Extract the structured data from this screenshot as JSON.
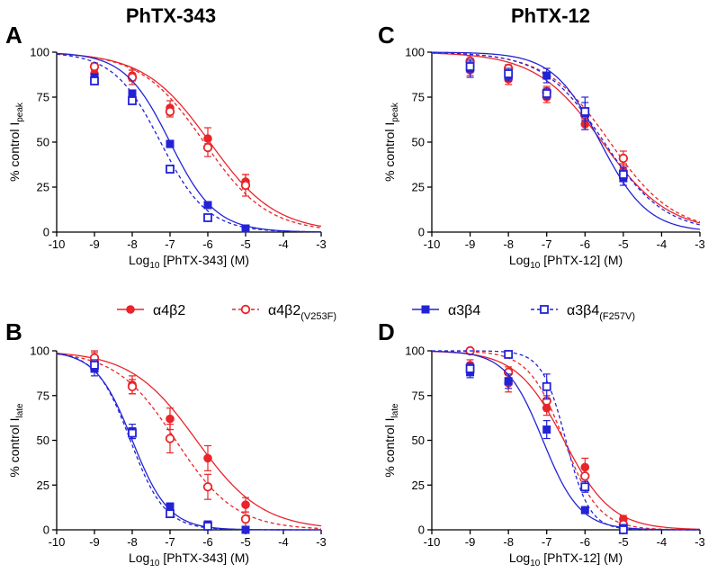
{
  "colors": {
    "red": "#e8252a",
    "blue": "#2323d6"
  },
  "column_titles": [
    "PhTX-343",
    "PhTX-12"
  ],
  "legend": [
    {
      "label": "α4β2",
      "sub": "",
      "color": "red",
      "marker": "filled-circle",
      "dashed": false
    },
    {
      "label": "α4β2",
      "sub": "(V253F)",
      "color": "red",
      "marker": "open-circle",
      "dashed": true
    },
    {
      "label": "α3β4",
      "sub": "",
      "color": "blue",
      "marker": "filled-square",
      "dashed": false
    },
    {
      "label": "α3β4",
      "sub": "(F257V)",
      "color": "blue",
      "marker": "open-square",
      "dashed": true
    }
  ],
  "chart_data": [
    {
      "panel": "A",
      "type": "scatter",
      "curve_fit": "sigmoidal",
      "xlabel": {
        "main": "Log",
        "sub": "10",
        "rest": " [PhTX-343] (M)"
      },
      "ylabel": {
        "main": "% control I",
        "sub": "peak"
      },
      "xlim": [
        -10,
        -3
      ],
      "ylim": [
        0,
        100
      ],
      "xticks": [
        "-10",
        "-9",
        "-8",
        "-7",
        "-6",
        "-5",
        "-4",
        "-3"
      ],
      "yticks": [
        "0",
        "25",
        "50",
        "75",
        "100"
      ],
      "series": [
        {
          "legend_index": 0,
          "x": [
            -9,
            -8,
            -7,
            -6,
            -5
          ],
          "y": [
            88,
            87,
            69,
            52,
            28
          ],
          "err": [
            3,
            3,
            4,
            6,
            4
          ],
          "ic50_log": -5.95,
          "hill": 0.5
        },
        {
          "legend_index": 1,
          "x": [
            -9,
            -8,
            -7,
            -6,
            -5
          ],
          "y": [
            92,
            86,
            67,
            47,
            26
          ],
          "err": [
            2,
            4,
            3,
            5,
            6
          ],
          "ic50_log": -6.1,
          "hill": 0.52
        },
        {
          "legend_index": 2,
          "x": [
            -9,
            -8,
            -7,
            -6,
            -5
          ],
          "y": [
            86,
            77,
            49,
            15,
            2
          ],
          "err": [
            2,
            2,
            2,
            1,
            1
          ],
          "ic50_log": -7.0,
          "hill": 0.72
        },
        {
          "legend_index": 3,
          "x": [
            -9,
            -8,
            -7,
            -6
          ],
          "y": [
            84,
            73,
            35,
            8
          ],
          "err": [
            2,
            2,
            2,
            1
          ],
          "ic50_log": -7.25,
          "hill": 0.7
        }
      ]
    },
    {
      "panel": "C",
      "type": "scatter",
      "curve_fit": "sigmoidal",
      "xlabel": {
        "main": "Log",
        "sub": "10",
        "rest": " [PhTX-12] (M)"
      },
      "ylabel": {
        "main": "% control I",
        "sub": "peak"
      },
      "xlim": [
        -10,
        -3
      ],
      "ylim": [
        0,
        100
      ],
      "xticks": [
        "-10",
        "-9",
        "-8",
        "-7",
        "-6",
        "-5",
        "-4",
        "-3"
      ],
      "yticks": [
        "0",
        "25",
        "50",
        "75",
        "100"
      ],
      "series": [
        {
          "legend_index": 0,
          "x": [
            -9,
            -8,
            -7,
            -6,
            -5
          ],
          "y": [
            90,
            85,
            75,
            60,
            34
          ],
          "err": [
            3,
            3,
            3,
            3,
            4
          ],
          "ic50_log": -5.55,
          "hill": 0.5
        },
        {
          "legend_index": 1,
          "x": [
            -9,
            -8,
            -7,
            -6,
            -5
          ],
          "y": [
            95,
            91,
            78,
            65,
            41
          ],
          "err": [
            3,
            2,
            3,
            3,
            4
          ],
          "ic50_log": -5.35,
          "hill": 0.52
        },
        {
          "legend_index": 2,
          "x": [
            -9,
            -8,
            -7,
            -6,
            -5
          ],
          "y": [
            91,
            87,
            87,
            66,
            30
          ],
          "err": [
            5,
            3,
            4,
            9,
            4
          ],
          "ic50_log": -5.6,
          "hill": 0.7
        },
        {
          "legend_index": 3,
          "x": [
            -9,
            -8,
            -7,
            -6,
            -5
          ],
          "y": [
            92,
            88,
            77,
            67,
            32
          ],
          "err": [
            3,
            3,
            3,
            5,
            4
          ],
          "ic50_log": -5.5,
          "hill": 0.55
        }
      ]
    },
    {
      "panel": "B",
      "type": "scatter",
      "curve_fit": "sigmoidal",
      "xlabel": {
        "main": "Log",
        "sub": "10",
        "rest": " [PhTX-343] (M)"
      },
      "ylabel": {
        "main": "% control I",
        "sub": "late"
      },
      "xlim": [
        -10,
        -3
      ],
      "ylim": [
        0,
        100
      ],
      "xticks": [
        "-10",
        "-9",
        "-8",
        "-7",
        "-6",
        "-5",
        "-4",
        "-3"
      ],
      "yticks": [
        "0",
        "25",
        "50",
        "75",
        "100"
      ],
      "series": [
        {
          "legend_index": 0,
          "x": [
            -9,
            -8,
            -7,
            -6,
            -5
          ],
          "y": [
            95,
            81,
            62,
            40,
            14
          ],
          "err": [
            4,
            5,
            6,
            7,
            4
          ],
          "ic50_log": -6.3,
          "hill": 0.5
        },
        {
          "legend_index": 1,
          "x": [
            -9,
            -8,
            -7,
            -6,
            -5
          ],
          "y": [
            96,
            80,
            51,
            24,
            6
          ],
          "err": [
            4,
            4,
            8,
            7,
            4
          ],
          "ic50_log": -6.85,
          "hill": 0.55
        },
        {
          "legend_index": 2,
          "x": [
            -9,
            -8,
            -7,
            -6,
            -5
          ],
          "y": [
            90,
            55,
            13,
            3,
            0
          ],
          "err": [
            4,
            4,
            2,
            1,
            1
          ],
          "ic50_log": -8.0,
          "hill": 0.9
        },
        {
          "legend_index": 3,
          "x": [
            -9,
            -8,
            -7,
            -6
          ],
          "y": [
            92,
            54,
            9,
            2
          ],
          "err": [
            3,
            3,
            2,
            1
          ],
          "ic50_log": -8.05,
          "hill": 0.95
        }
      ]
    },
    {
      "panel": "D",
      "type": "scatter",
      "curve_fit": "sigmoidal",
      "xlabel": {
        "main": "Log",
        "sub": "10",
        "rest": " [PhTX-12] (M)"
      },
      "ylabel": {
        "main": "% control I",
        "sub": "late"
      },
      "xlim": [
        -10,
        -3
      ],
      "ylim": [
        0,
        100
      ],
      "xticks": [
        "-10",
        "-9",
        "-8",
        "-7",
        "-6",
        "-5",
        "-4",
        "-3"
      ],
      "yticks": [
        "0",
        "25",
        "50",
        "75",
        "100"
      ],
      "series": [
        {
          "legend_index": 0,
          "x": [
            -9,
            -8,
            -7,
            -6,
            -5
          ],
          "y": [
            92,
            82,
            68,
            35,
            6
          ],
          "err": [
            3,
            5,
            4,
            5,
            2
          ],
          "ic50_log": -6.55,
          "hill": 0.7
        },
        {
          "legend_index": 1,
          "x": [
            -9,
            -8,
            -7,
            -6,
            -5
          ],
          "y": [
            100,
            88,
            72,
            30,
            3
          ],
          "err": [
            1,
            3,
            3,
            4,
            2
          ],
          "ic50_log": -6.55,
          "hill": 0.95
        },
        {
          "legend_index": 2,
          "x": [
            -9,
            -8,
            -7,
            -6,
            -5
          ],
          "y": [
            88,
            83,
            56,
            11,
            1
          ],
          "err": [
            3,
            4,
            5,
            1,
            1
          ],
          "ic50_log": -7.1,
          "hill": 0.9
        },
        {
          "legend_index": 3,
          "x": [
            -9,
            -8,
            -7,
            -6,
            -5
          ],
          "y": [
            90,
            98,
            80,
            24,
            0
          ],
          "err": [
            3,
            2,
            7,
            3,
            1
          ],
          "ic50_log": -6.5,
          "hill": 1.4
        }
      ]
    }
  ]
}
